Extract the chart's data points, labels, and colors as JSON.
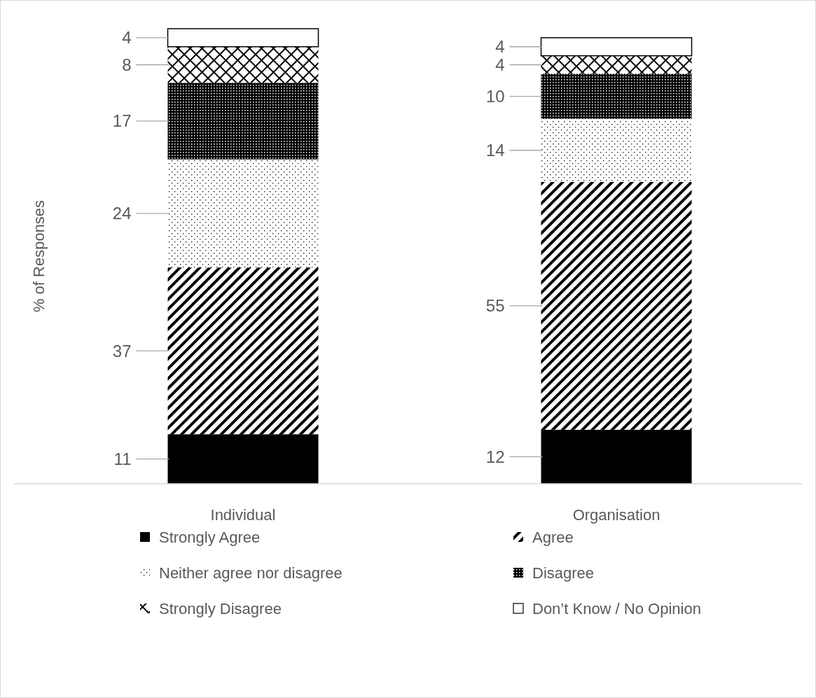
{
  "chart_data": {
    "type": "bar",
    "stacked": true,
    "ylabel": "% of Responses",
    "categories": [
      "Individual",
      "Organisation"
    ],
    "data_labels": true,
    "legend": "bottom",
    "series": [
      {
        "name": "Strongly Agree",
        "color": "#000000",
        "values": [
          11,
          12
        ]
      },
      {
        "name": "Agree",
        "color": "#000000",
        "values": [
          37,
          55
        ]
      },
      {
        "name": "Neither agree nor disagree",
        "color": "#000000",
        "values": [
          24,
          14
        ]
      },
      {
        "name": "Disagree",
        "color": "#000000",
        "values": [
          17,
          10
        ]
      },
      {
        "name": "Strongly Disagree",
        "color": "#000000",
        "values": [
          8,
          4
        ]
      },
      {
        "name": "Don’t Know / No Opinion",
        "color": "#ffffff",
        "values": [
          4,
          4
        ]
      }
    ]
  }
}
